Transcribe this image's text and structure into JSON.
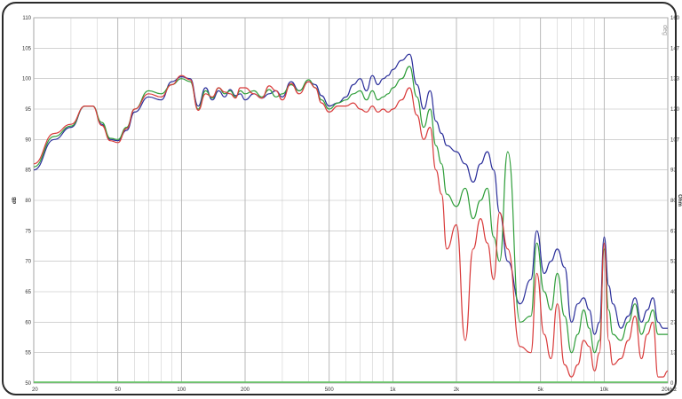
{
  "chart_data": {
    "type": "line",
    "title": "",
    "xlabel": "",
    "ylabel": "dB",
    "y2label": "Ohm",
    "x_scale": "log",
    "xlim": [
      20,
      20000
    ],
    "ylim": [
      50,
      110
    ],
    "y2lim": [
      0,
      160
    ],
    "grid": true,
    "x_tick_values": [
      20,
      50,
      100,
      200,
      500,
      1000,
      2000,
      5000,
      10000,
      20000
    ],
    "x_tick_labels": [
      "20",
      "50",
      "100",
      "200",
      "500",
      "1k",
      "2k",
      "5k",
      "10k",
      "20kHz"
    ],
    "y_tick_labels": [
      "50",
      "55",
      "60",
      "65",
      "70",
      "75",
      "80",
      "85",
      "90",
      "95",
      "100",
      "105",
      "110"
    ],
    "y2_tick_labels": [
      "0",
      "13",
      "27",
      "40",
      "53",
      "67",
      "80",
      "93",
      "107",
      "120",
      "133",
      "147",
      "160"
    ],
    "corner_label": "deg",
    "series": [
      {
        "color": "#2b2f9a",
        "x": [
          20,
          25,
          30,
          35,
          38,
          42,
          46,
          50,
          55,
          60,
          70,
          80,
          90,
          100,
          110,
          120,
          130,
          140,
          150,
          160,
          170,
          180,
          190,
          200,
          220,
          240,
          260,
          280,
          300,
          330,
          360,
          400,
          430,
          460,
          500,
          550,
          600,
          650,
          700,
          750,
          800,
          850,
          900,
          950,
          1000,
          1100,
          1200,
          1300,
          1400,
          1500,
          1600,
          1700,
          1800,
          2000,
          2200,
          2400,
          2600,
          2800,
          3000,
          3200,
          3500,
          4000,
          4500,
          4800,
          5200,
          5600,
          6000,
          6500,
          7000,
          7500,
          8000,
          8500,
          9000,
          9500,
          10000,
          10500,
          11000,
          12000,
          13000,
          14000,
          15000,
          16000,
          17000,
          18000,
          19000,
          20000
        ],
        "y": [
          85,
          90,
          92,
          95.5,
          95.5,
          92.5,
          90,
          89.8,
          91.5,
          94.5,
          97,
          96.5,
          99.5,
          100.3,
          100,
          95.5,
          98.5,
          96.5,
          98,
          97,
          98.2,
          97.2,
          97.5,
          96.5,
          97.5,
          96.8,
          97.5,
          98,
          97,
          99.5,
          98,
          99.5,
          99,
          97.2,
          95.5,
          96,
          97,
          99,
          100,
          98,
          100.5,
          99,
          100,
          100.5,
          101.5,
          103,
          104,
          99,
          95,
          98,
          93,
          91,
          89,
          88,
          86,
          83,
          86,
          88,
          85,
          78,
          70,
          63,
          67,
          75,
          68,
          70,
          72,
          69,
          60,
          63,
          64,
          62,
          58,
          60,
          74,
          66,
          63,
          59,
          61,
          64,
          60,
          62,
          64,
          60,
          59,
          59
        ]
      },
      {
        "color": "#2f9e3a",
        "x": [
          20,
          25,
          30,
          35,
          38,
          42,
          46,
          50,
          55,
          60,
          70,
          80,
          90,
          100,
          110,
          120,
          130,
          140,
          150,
          160,
          170,
          180,
          190,
          200,
          220,
          240,
          260,
          280,
          300,
          330,
          360,
          400,
          430,
          460,
          500,
          550,
          600,
          650,
          700,
          750,
          800,
          850,
          900,
          950,
          1000,
          1100,
          1200,
          1300,
          1400,
          1500,
          1600,
          1700,
          1800,
          2000,
          2200,
          2400,
          2600,
          2800,
          3000,
          3200,
          3500,
          4000,
          4500,
          4800,
          5200,
          5600,
          6000,
          6500,
          7000,
          7500,
          8000,
          8500,
          9000,
          9500,
          10000,
          10500,
          11000,
          12000,
          13000,
          14000,
          15000,
          16000,
          17000,
          18000,
          19000,
          20000
        ],
        "y": [
          85.5,
          90.5,
          92.2,
          95.5,
          95.5,
          92.8,
          90.2,
          90,
          92,
          95,
          98,
          97.5,
          99,
          100,
          99.5,
          95,
          98,
          96.8,
          98.5,
          97.5,
          98,
          97,
          98,
          97.5,
          98,
          97,
          98.2,
          97,
          97.5,
          99,
          98,
          99.8,
          98.5,
          96.5,
          95,
          96,
          96.5,
          97.5,
          98,
          96.5,
          98,
          96.5,
          97,
          97.5,
          98.5,
          100,
          102,
          97,
          92,
          95,
          89,
          86,
          81,
          79,
          82,
          77,
          80,
          82,
          74,
          70,
          88,
          60,
          61,
          73,
          65,
          62,
          68,
          61,
          55,
          58,
          62,
          59,
          55,
          57,
          72,
          62,
          58,
          57,
          60,
          63,
          58,
          60,
          62,
          58,
          58,
          58
        ]
      },
      {
        "color": "#d93b3b",
        "x": [
          20,
          25,
          30,
          35,
          38,
          42,
          46,
          50,
          55,
          60,
          70,
          80,
          90,
          100,
          110,
          120,
          130,
          140,
          150,
          160,
          170,
          180,
          190,
          200,
          220,
          240,
          260,
          280,
          300,
          330,
          360,
          400,
          430,
          460,
          500,
          550,
          600,
          650,
          700,
          750,
          800,
          850,
          900,
          950,
          1000,
          1100,
          1200,
          1300,
          1400,
          1500,
          1600,
          1700,
          1800,
          2000,
          2200,
          2400,
          2600,
          2800,
          3000,
          3200,
          3500,
          4000,
          4500,
          4800,
          5200,
          5600,
          6000,
          6500,
          7000,
          7500,
          8000,
          8500,
          9000,
          9500,
          10000,
          10500,
          11000,
          12000,
          13000,
          14000,
          15000,
          16000,
          17000,
          18000,
          19000,
          20000
        ],
        "y": [
          86,
          91,
          92.5,
          95.5,
          95.5,
          92.3,
          89.8,
          89.5,
          91.8,
          95,
          97.5,
          97,
          99,
          100.5,
          99.8,
          94.8,
          97.5,
          97,
          98.5,
          97.8,
          97.5,
          96.8,
          98.5,
          98.5,
          97.5,
          96.8,
          98.8,
          98,
          96.5,
          99.2,
          97.5,
          99.5,
          98.5,
          96,
          94.5,
          95.5,
          95.5,
          96,
          95,
          94.5,
          95.5,
          94.5,
          95,
          94.5,
          95,
          96.5,
          98.5,
          94,
          90,
          92,
          85,
          81,
          72,
          76,
          57,
          72,
          77,
          73,
          67,
          78,
          72,
          56,
          55,
          68,
          58,
          54,
          63,
          53,
          51,
          53,
          57,
          56,
          52,
          55,
          73,
          57,
          53,
          54,
          57,
          61,
          54,
          58,
          60,
          51,
          51,
          52
        ]
      }
    ],
    "baseline": {
      "color": "#5cc45c",
      "y": 50
    }
  }
}
